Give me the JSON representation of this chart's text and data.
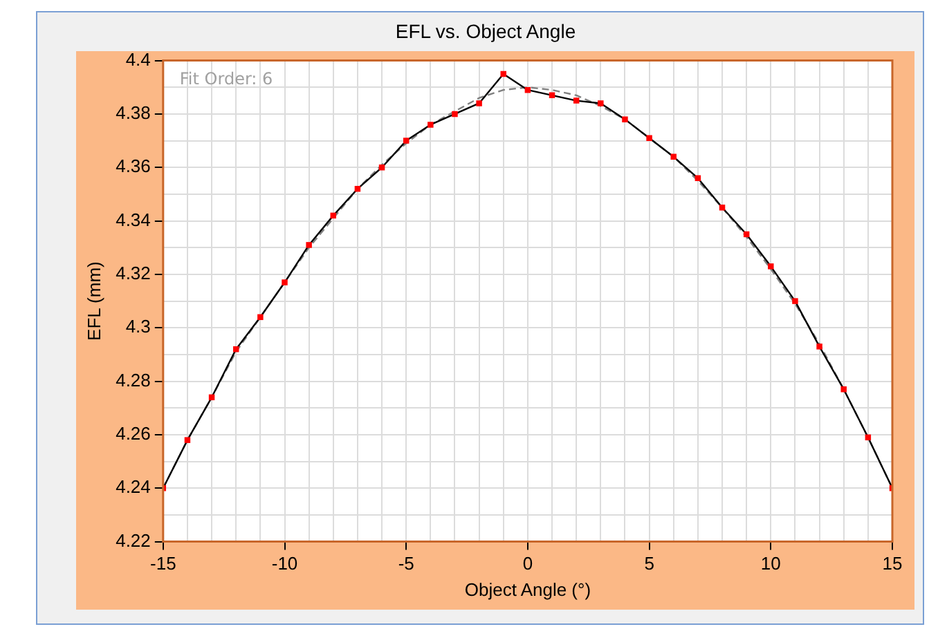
{
  "chart_data": {
    "type": "line",
    "title": "EFL vs. Object Angle",
    "xlabel": "Object Angle (°)",
    "ylabel": "EFL (mm)",
    "annotations": [
      "Fit Order: 6"
    ],
    "x": [
      -15,
      -14,
      -13,
      -12,
      -11,
      -10,
      -9,
      -8,
      -7,
      -6,
      -5,
      -4,
      -3,
      -2,
      -1,
      0,
      1,
      2,
      3,
      4,
      5,
      6,
      7,
      8,
      9,
      10,
      11,
      12,
      13,
      14,
      15
    ],
    "series": [
      {
        "color": "#808080",
        "line_style": "dashed",
        "marker": "none",
        "values": [
          4.24,
          4.258,
          4.274,
          4.291,
          4.304,
          4.317,
          4.33,
          4.341,
          4.352,
          4.361,
          4.369,
          4.376,
          4.381,
          4.386,
          4.389,
          4.39,
          4.389,
          4.387,
          4.383,
          4.378,
          4.371,
          4.364,
          4.355,
          4.345,
          4.334,
          4.322,
          4.309,
          4.294,
          4.277,
          4.259,
          4.24
        ]
      },
      {
        "color": "#000000",
        "line_style": "solid",
        "marker": "none",
        "values": [
          4.24,
          4.258,
          4.274,
          4.292,
          4.304,
          4.317,
          4.331,
          4.342,
          4.352,
          4.36,
          4.37,
          4.376,
          4.38,
          4.384,
          4.395,
          4.389,
          4.387,
          4.385,
          4.384,
          4.378,
          4.371,
          4.364,
          4.356,
          4.345,
          4.335,
          4.323,
          4.31,
          4.293,
          4.277,
          4.259,
          4.24
        ]
      },
      {
        "type": "scatter",
        "color": "#ff0000",
        "marker": "square",
        "values": [
          4.24,
          4.258,
          4.274,
          4.292,
          4.304,
          4.317,
          4.331,
          4.342,
          4.352,
          4.36,
          4.37,
          4.376,
          4.38,
          4.384,
          4.395,
          4.389,
          4.387,
          4.385,
          4.384,
          4.378,
          4.371,
          4.364,
          4.356,
          4.345,
          4.335,
          4.323,
          4.31,
          4.293,
          4.277,
          4.259,
          4.24
        ]
      }
    ],
    "xlim": [
      -15,
      15
    ],
    "xticks": [
      -15,
      {
        "value": -14,
        "label": null
      },
      {
        "value": -13,
        "label": null
      },
      {
        "value": -12,
        "label": null
      },
      {
        "value": -11,
        "label": null
      },
      -10,
      {
        "value": -9,
        "label": null
      },
      {
        "value": -8,
        "label": null
      },
      {
        "value": -7,
        "label": null
      },
      {
        "value": -6,
        "label": null
      },
      -5,
      {
        "value": -4,
        "label": null
      },
      {
        "value": -3,
        "label": null
      },
      {
        "value": -2,
        "label": null
      },
      {
        "value": -1,
        "label": null
      },
      0,
      {
        "value": 1,
        "label": null
      },
      {
        "value": 2,
        "label": null
      },
      {
        "value": 3,
        "label": null
      },
      {
        "value": 4,
        "label": null
      },
      5,
      {
        "value": 6,
        "label": null
      },
      {
        "value": 7,
        "label": null
      },
      {
        "value": 8,
        "label": null
      },
      {
        "value": 9,
        "label": null
      },
      10,
      {
        "value": 11,
        "label": null
      },
      {
        "value": 12,
        "label": null
      },
      {
        "value": 13,
        "label": null
      },
      {
        "value": 14,
        "label": null
      },
      15
    ],
    "ylim": [
      4.22,
      4.4
    ],
    "yticks": [
      4.22,
      {
        "value": 4.23,
        "label": null
      },
      4.24,
      {
        "value": 4.25,
        "label": null
      },
      4.26,
      {
        "value": 4.27,
        "label": null
      },
      4.28,
      {
        "value": 4.29,
        "label": null
      },
      4.3,
      {
        "value": 4.31,
        "label": null
      },
      4.32,
      {
        "value": 4.33,
        "label": null
      },
      4.34,
      {
        "value": 4.35,
        "label": null
      },
      4.36,
      {
        "value": 4.37,
        "label": null
      },
      4.38,
      {
        "value": 4.39,
        "label": null
      },
      4.4
    ],
    "grid": true,
    "legend": false
  }
}
